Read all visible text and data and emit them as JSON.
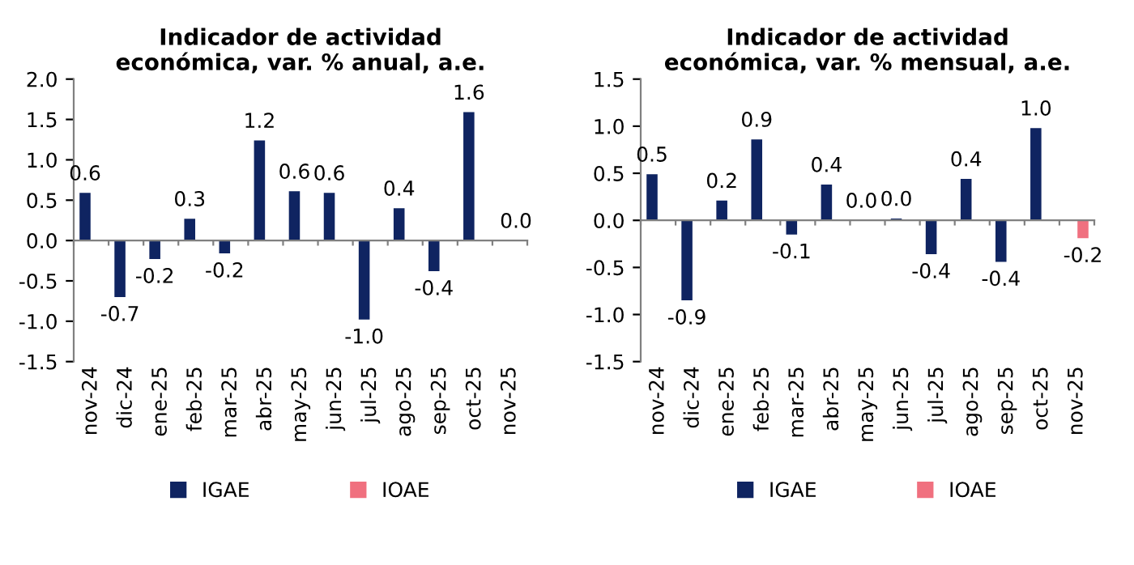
{
  "chart_data": [
    {
      "type": "bar",
      "title": "Indicador de actividad\neconómica, var. % anual, a.e.",
      "categories": [
        "nov-24",
        "dic-24",
        "ene-25",
        "feb-25",
        "mar-25",
        "abr-25",
        "may-25",
        "jun-25",
        "jul-25",
        "ago-25",
        "sep-25",
        "oct-25",
        "nov-25"
      ],
      "series": [
        {
          "name": "IGAE",
          "color": "#0f2461",
          "values": [
            0.59,
            -0.7,
            -0.23,
            0.27,
            -0.16,
            1.24,
            0.61,
            0.59,
            -0.98,
            0.4,
            -0.38,
            1.59,
            null
          ],
          "value_labels": [
            "0.6",
            "-0.7",
            "-0.2",
            "0.3",
            "-0.2",
            "1.2",
            "0.6",
            "0.6",
            "-1.0",
            "0.4",
            "-0.4",
            "1.6",
            null
          ]
        },
        {
          "name": "IOAE",
          "color": "#f0707f",
          "values": [
            null,
            null,
            null,
            null,
            null,
            null,
            null,
            null,
            null,
            null,
            null,
            null,
            0.0
          ],
          "value_labels": [
            null,
            null,
            null,
            null,
            null,
            null,
            null,
            null,
            null,
            null,
            null,
            null,
            "0.0"
          ]
        }
      ],
      "ylim": [
        -1.5,
        2.0
      ],
      "yticks": [
        {
          "value": -1.5,
          "label": "-1.5"
        },
        {
          "value": -1.0,
          "label": "-1.0"
        },
        {
          "value": -0.5,
          "label": "-0.5"
        },
        {
          "value": 0.0,
          "label": "0.0"
        },
        {
          "value": 0.5,
          "label": "0.5"
        },
        {
          "value": 1.0,
          "label": "1.0"
        },
        {
          "value": 1.5,
          "label": "1.5"
        },
        {
          "value": 2.0,
          "label": "2.0"
        }
      ],
      "legend": "bottom"
    },
    {
      "type": "bar",
      "title": "Indicador de actividad\neconómica, var. % mensual, a.e.",
      "categories": [
        "nov-24",
        "dic-24",
        "ene-25",
        "feb-25",
        "mar-25",
        "abr-25",
        "may-25",
        "jun-25",
        "jul-25",
        "ago-25",
        "sep-25",
        "oct-25",
        "nov-25"
      ],
      "series": [
        {
          "name": "IGAE",
          "color": "#0f2461",
          "values": [
            0.49,
            -0.85,
            0.21,
            0.86,
            -0.15,
            0.38,
            0.0,
            0.02,
            -0.36,
            0.44,
            -0.44,
            0.98,
            null
          ],
          "value_labels": [
            "0.5",
            "-0.9",
            "0.2",
            "0.9",
            "-0.1",
            "0.4",
            "0.0",
            "0.0",
            "-0.4",
            "0.4",
            "-0.4",
            "1.0",
            null
          ]
        },
        {
          "name": "IOAE",
          "color": "#f0707f",
          "values": [
            null,
            null,
            null,
            null,
            null,
            null,
            null,
            null,
            null,
            null,
            null,
            null,
            -0.19
          ],
          "value_labels": [
            null,
            null,
            null,
            null,
            null,
            null,
            null,
            null,
            null,
            null,
            null,
            null,
            "-0.2"
          ]
        }
      ],
      "ylim": [
        -1.5,
        1.5
      ],
      "yticks": [
        {
          "value": -1.5,
          "label": "-1.5"
        },
        {
          "value": -1.0,
          "label": "-1.0"
        },
        {
          "value": -0.5,
          "label": "-0.5"
        },
        {
          "value": 0.0,
          "label": "0.0"
        },
        {
          "value": 0.5,
          "label": "0.5"
        },
        {
          "value": 1.0,
          "label": "1.0"
        },
        {
          "value": 1.5,
          "label": "1.5"
        }
      ],
      "legend": "bottom"
    }
  ]
}
